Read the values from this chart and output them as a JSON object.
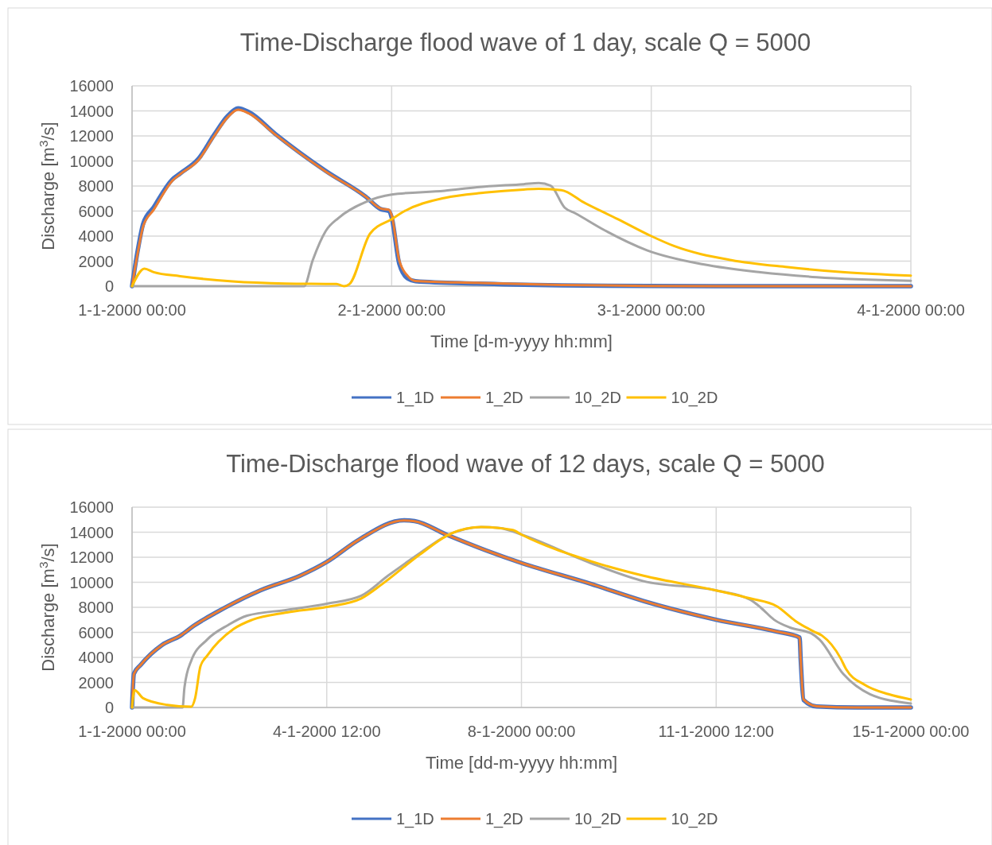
{
  "chart_data": [
    {
      "type": "line",
      "title": "Time-Discharge flood wave of 1 day, scale Q = 5000",
      "xlabel": "Time [d-m-yyyy hh:mm]",
      "ylabel": "Discharge [m$^{3}$/s]",
      "xlim": [
        "2000-01-01T00:00",
        "2000-01-04T00:00"
      ],
      "xticks": [
        {
          "value": "2000-01-01T00:00",
          "label": "1-1-2000 00:00"
        },
        {
          "value": "2000-01-02T00:00",
          "label": "2-1-2000 00:00"
        },
        {
          "value": "2000-01-03T00:00",
          "label": "3-1-2000 00:00"
        },
        {
          "value": "2000-01-04T00:00",
          "label": "4-1-2000 00:00"
        }
      ],
      "ylim": [
        0,
        16000
      ],
      "yticks": [
        0,
        2000,
        4000,
        6000,
        8000,
        10000,
        12000,
        14000,
        16000
      ],
      "grid": true,
      "legend": "bottom",
      "marker": "none",
      "line_style": "solid",
      "series": [
        {
          "name": "1_1D",
          "color": "#4472c4",
          "x": [
            "2000-01-01T00:00",
            "2000-01-01T00:32",
            "2000-01-01T01:02",
            "2000-01-01T02:00",
            "2000-01-01T03:42",
            "2000-01-01T04:27",
            "2000-01-01T06:10",
            "2000-01-01T07:36",
            "2000-01-01T08:51",
            "2000-01-01T09:48",
            "2000-01-01T10:48",
            "2000-01-01T13:15",
            "2000-01-01T17:54",
            "2000-01-01T21:36",
            "2000-01-01T23:00",
            "2000-01-01T23:45",
            "2000-01-02T00:00",
            "2000-01-02T00:42",
            "2000-01-02T01:30",
            "2000-01-02T02:12",
            "2000-01-02T07:54",
            "2000-01-02T15:42",
            "2000-01-02T23:36",
            "2000-01-03T12:00",
            "2000-01-04T00:00"
          ],
          "values": [
            0,
            2900,
            5000,
            6300,
            8500,
            9000,
            10200,
            12100,
            13600,
            14200,
            13900,
            12150,
            9200,
            7150,
            6150,
            6000,
            5500,
            1800,
            600,
            400,
            200,
            60,
            10,
            0,
            0
          ]
        },
        {
          "name": "1_2D",
          "color": "#ed7d31",
          "x": [
            "2000-01-01T00:00",
            "2000-01-01T00:32",
            "2000-01-01T01:02",
            "2000-01-01T02:00",
            "2000-01-01T03:42",
            "2000-01-01T04:27",
            "2000-01-01T06:10",
            "2000-01-01T07:36",
            "2000-01-01T08:51",
            "2000-01-01T09:48",
            "2000-01-01T10:48",
            "2000-01-01T13:15",
            "2000-01-01T17:54",
            "2000-01-01T21:36",
            "2000-01-01T23:00",
            "2000-01-01T23:45",
            "2000-01-02T00:00",
            "2000-01-02T00:42",
            "2000-01-02T01:30",
            "2000-01-02T02:12",
            "2000-01-02T07:54",
            "2000-01-02T15:42",
            "2000-01-02T23:36",
            "2000-01-03T12:00",
            "2000-01-04T00:00"
          ],
          "values": [
            0,
            2700,
            4800,
            6100,
            8400,
            8950,
            10100,
            12000,
            13500,
            14100,
            13800,
            12100,
            9160,
            7150,
            6200,
            6100,
            5670,
            2070,
            800,
            420,
            270,
            100,
            20,
            0,
            0
          ]
        },
        {
          "name": "10_2D",
          "color": "#a5a5a5",
          "x": [
            "2000-01-01T00:00",
            "2000-01-01T15:54",
            "2000-01-01T16:42",
            "2000-01-01T17:54",
            "2000-01-01T19:06",
            "2000-01-01T21:36",
            "2000-01-02T00:00",
            "2000-01-02T04:54",
            "2000-01-02T07:54",
            "2000-01-02T12:12",
            "2000-01-02T13:36",
            "2000-01-02T14:42",
            "2000-01-02T16:00",
            "2000-01-02T17:00",
            "2000-01-02T19:42",
            "2000-01-02T23:36",
            "2000-01-03T04:48",
            "2000-01-03T10:06",
            "2000-01-03T15:18",
            "2000-01-04T00:00"
          ],
          "values": [
            0,
            0,
            2070,
            4400,
            5460,
            6730,
            7320,
            7620,
            7900,
            8150,
            8240,
            8030,
            6270,
            5810,
            4460,
            2870,
            1740,
            1110,
            720,
            430
          ]
        },
        {
          "name": "10_2D",
          "color": "#ffc000",
          "x": [
            "2000-01-01T00:00",
            "2000-01-01T01:09",
            "2000-01-01T02:00",
            "2000-01-01T04:27",
            "2000-01-01T09:18",
            "2000-01-01T14:12",
            "2000-01-01T18:54",
            "2000-01-01T19:36",
            "2000-01-01T20:06",
            "2000-01-01T22:00",
            "2000-01-02T00:00",
            "2000-01-02T01:12",
            "2000-01-02T04:54",
            "2000-01-02T08:36",
            "2000-01-02T12:12",
            "2000-01-02T13:36",
            "2000-01-02T15:42",
            "2000-01-02T17:48",
            "2000-01-02T20:54",
            "2000-01-03T00:00",
            "2000-01-03T02:06",
            "2000-01-03T07:24",
            "2000-01-03T12:36",
            "2000-01-03T17:54",
            "2000-01-04T00:00"
          ],
          "values": [
            0,
            1400,
            1120,
            800,
            380,
            210,
            170,
            0,
            170,
            4190,
            5350,
            6000,
            7050,
            7470,
            7720,
            7780,
            7670,
            6670,
            5360,
            4000,
            3210,
            2080,
            1520,
            1110,
            840
          ]
        }
      ]
    },
    {
      "type": "line",
      "title": "Time-Discharge flood wave of 12 days, scale Q = 5000",
      "xlabel": "Time [dd-m-yyyy hh:mm]",
      "ylabel": "Discharge [m$^{3}$/s]",
      "xlim": [
        "2000-01-01T00:00",
        "2000-01-15T00:00"
      ],
      "xticks": [
        {
          "value": "2000-01-01T00:00",
          "label": "1-1-2000 00:00"
        },
        {
          "value": "2000-01-04T12:00",
          "label": "4-1-2000 12:00"
        },
        {
          "value": "2000-01-08T00:00",
          "label": "8-1-2000 00:00"
        },
        {
          "value": "2000-01-11T12:00",
          "label": "11-1-2000 12:00"
        },
        {
          "value": "2000-01-15T00:00",
          "label": "15-1-2000 00:00"
        }
      ],
      "ylim": [
        0,
        16000
      ],
      "yticks": [
        0,
        2000,
        4000,
        6000,
        8000,
        10000,
        12000,
        14000,
        16000
      ],
      "grid": true,
      "legend": "bottom",
      "marker": "none",
      "line_style": "solid",
      "series": [
        {
          "name": "1_1D",
          "color": "#4472c4",
          "x": [
            "2000-01-01T00:00",
            "2000-01-01T00:48",
            "2000-01-01T03:42",
            "2000-01-01T12:54",
            "2000-01-01T20:54",
            "2000-01-02T02:36",
            "2000-01-02T12:54",
            "2000-01-03T07:18",
            "2000-01-04T00:30",
            "2000-01-04T12:00",
            "2000-01-05T01:48",
            "2000-01-05T21:18",
            "2000-01-06T01:54",
            "2000-01-06T15:36",
            "2000-01-07T08:48",
            "2000-01-08T00:00",
            "2000-01-09T05:48",
            "2000-01-10T04:42",
            "2000-01-11T12:00",
            "2000-01-12T14:12",
            "2000-01-13T00:00",
            "2000-01-13T00:30",
            "2000-01-13T01:42",
            "2000-01-13T07:24",
            "2000-01-14T00:42",
            "2000-01-15T00:00"
          ],
          "values": [
            0,
            2700,
            3400,
            4990,
            5740,
            6520,
            7650,
            9350,
            10520,
            11620,
            13390,
            14950,
            14890,
            13810,
            12540,
            11540,
            9880,
            8500,
            7010,
            6060,
            5590,
            3720,
            600,
            80,
            0,
            0
          ]
        },
        {
          "name": "1_2D",
          "color": "#ed7d31",
          "x": [
            "2000-01-01T00:00",
            "2000-01-01T00:48",
            "2000-01-01T03:42",
            "2000-01-01T12:54",
            "2000-01-01T20:54",
            "2000-01-02T02:36",
            "2000-01-02T12:54",
            "2000-01-03T07:18",
            "2000-01-04T00:30",
            "2000-01-04T12:00",
            "2000-01-05T01:48",
            "2000-01-05T21:18",
            "2000-01-06T01:54",
            "2000-01-06T15:36",
            "2000-01-07T08:48",
            "2000-01-08T00:00",
            "2000-01-09T05:48",
            "2000-01-10T04:42",
            "2000-01-11T12:00",
            "2000-01-12T14:12",
            "2000-01-13T00:00",
            "2000-01-13T00:30",
            "2000-01-13T01:42",
            "2000-01-13T07:24",
            "2000-01-14T00:42",
            "2000-01-15T00:00"
          ],
          "values": [
            0,
            2660,
            3400,
            4990,
            5740,
            6520,
            7650,
            9350,
            10520,
            11620,
            13390,
            14940,
            14880,
            13810,
            12540,
            11540,
            9880,
            8500,
            7010,
            6060,
            5590,
            3720,
            640,
            100,
            0,
            0
          ]
        },
        {
          "name": "10_2D",
          "color": "#a5a5a5",
          "x": [
            "2000-01-01T00:00",
            "2000-01-01T21:48",
            "2000-01-01T22:36",
            "2000-01-02T01:30",
            "2000-01-02T08:24",
            "2000-01-02T17:30",
            "2000-01-03T01:36",
            "2000-01-03T18:48",
            "2000-01-04T12:00",
            "2000-01-05T02:54",
            "2000-01-05T14:24",
            "2000-01-06T04:12",
            "2000-01-06T15:36",
            "2000-01-07T06:36",
            "2000-01-07T14:36",
            "2000-01-08T00:00",
            "2000-01-09T05:48",
            "2000-01-10T04:42",
            "2000-01-11T12:00",
            "2000-01-12T02:42",
            "2000-01-12T07:18",
            "2000-01-12T13:00",
            "2000-01-12T19:54",
            "2000-01-13T05:06",
            "2000-01-13T08:36",
            "2000-01-13T18:54",
            "2000-01-14T06:24",
            "2000-01-15T00:00"
          ],
          "values": [
            0,
            0,
            1590,
            3720,
            5420,
            6590,
            7330,
            7800,
            8290,
            8930,
            10520,
            12330,
            13710,
            14410,
            14340,
            13810,
            11540,
            10090,
            9350,
            8610,
            7970,
            7010,
            6380,
            5910,
            5420,
            2660,
            1060,
            320
          ]
        },
        {
          "name": "10_2D",
          "color": "#ffc000",
          "x": [
            "2000-01-01T00:00",
            "2000-01-01T01:06",
            "2000-01-01T04:48",
            "2000-01-01T15:06",
            "2000-01-02T01:30",
            "2000-01-02T03:12",
            "2000-01-02T05:30",
            "2000-01-02T08:24",
            "2000-01-02T19:48",
            "2000-01-03T03:54",
            "2000-01-03T18:48",
            "2000-01-04T12:00",
            "2000-01-05T02:54",
            "2000-01-05T12:06",
            "2000-01-06T04:12",
            "2000-01-06T17:54",
            "2000-01-07T06:36",
            "2000-01-07T20:18",
            "2000-01-08T00:00",
            "2000-01-09T05:48",
            "2000-01-10T04:42",
            "2000-01-11T12:00",
            "2000-01-12T02:42",
            "2000-01-12T14:12",
            "2000-01-12T22:12",
            "2000-01-13T06:12",
            "2000-01-13T09:42",
            "2000-01-13T17:42",
            "2000-01-13T20:00",
            "2000-01-14T04:06",
            "2000-01-14T14:24",
            "2000-01-15T00:00"
          ],
          "values": [
            0,
            1380,
            740,
            210,
            60,
            740,
            3290,
            4140,
            6270,
            7010,
            7590,
            8030,
            8710,
            9880,
            12220,
            13920,
            14410,
            14170,
            13810,
            11690,
            10520,
            9350,
            8710,
            8080,
            6910,
            6060,
            5740,
            3930,
            3080,
            1810,
            1060,
            640
          ]
        }
      ]
    }
  ]
}
